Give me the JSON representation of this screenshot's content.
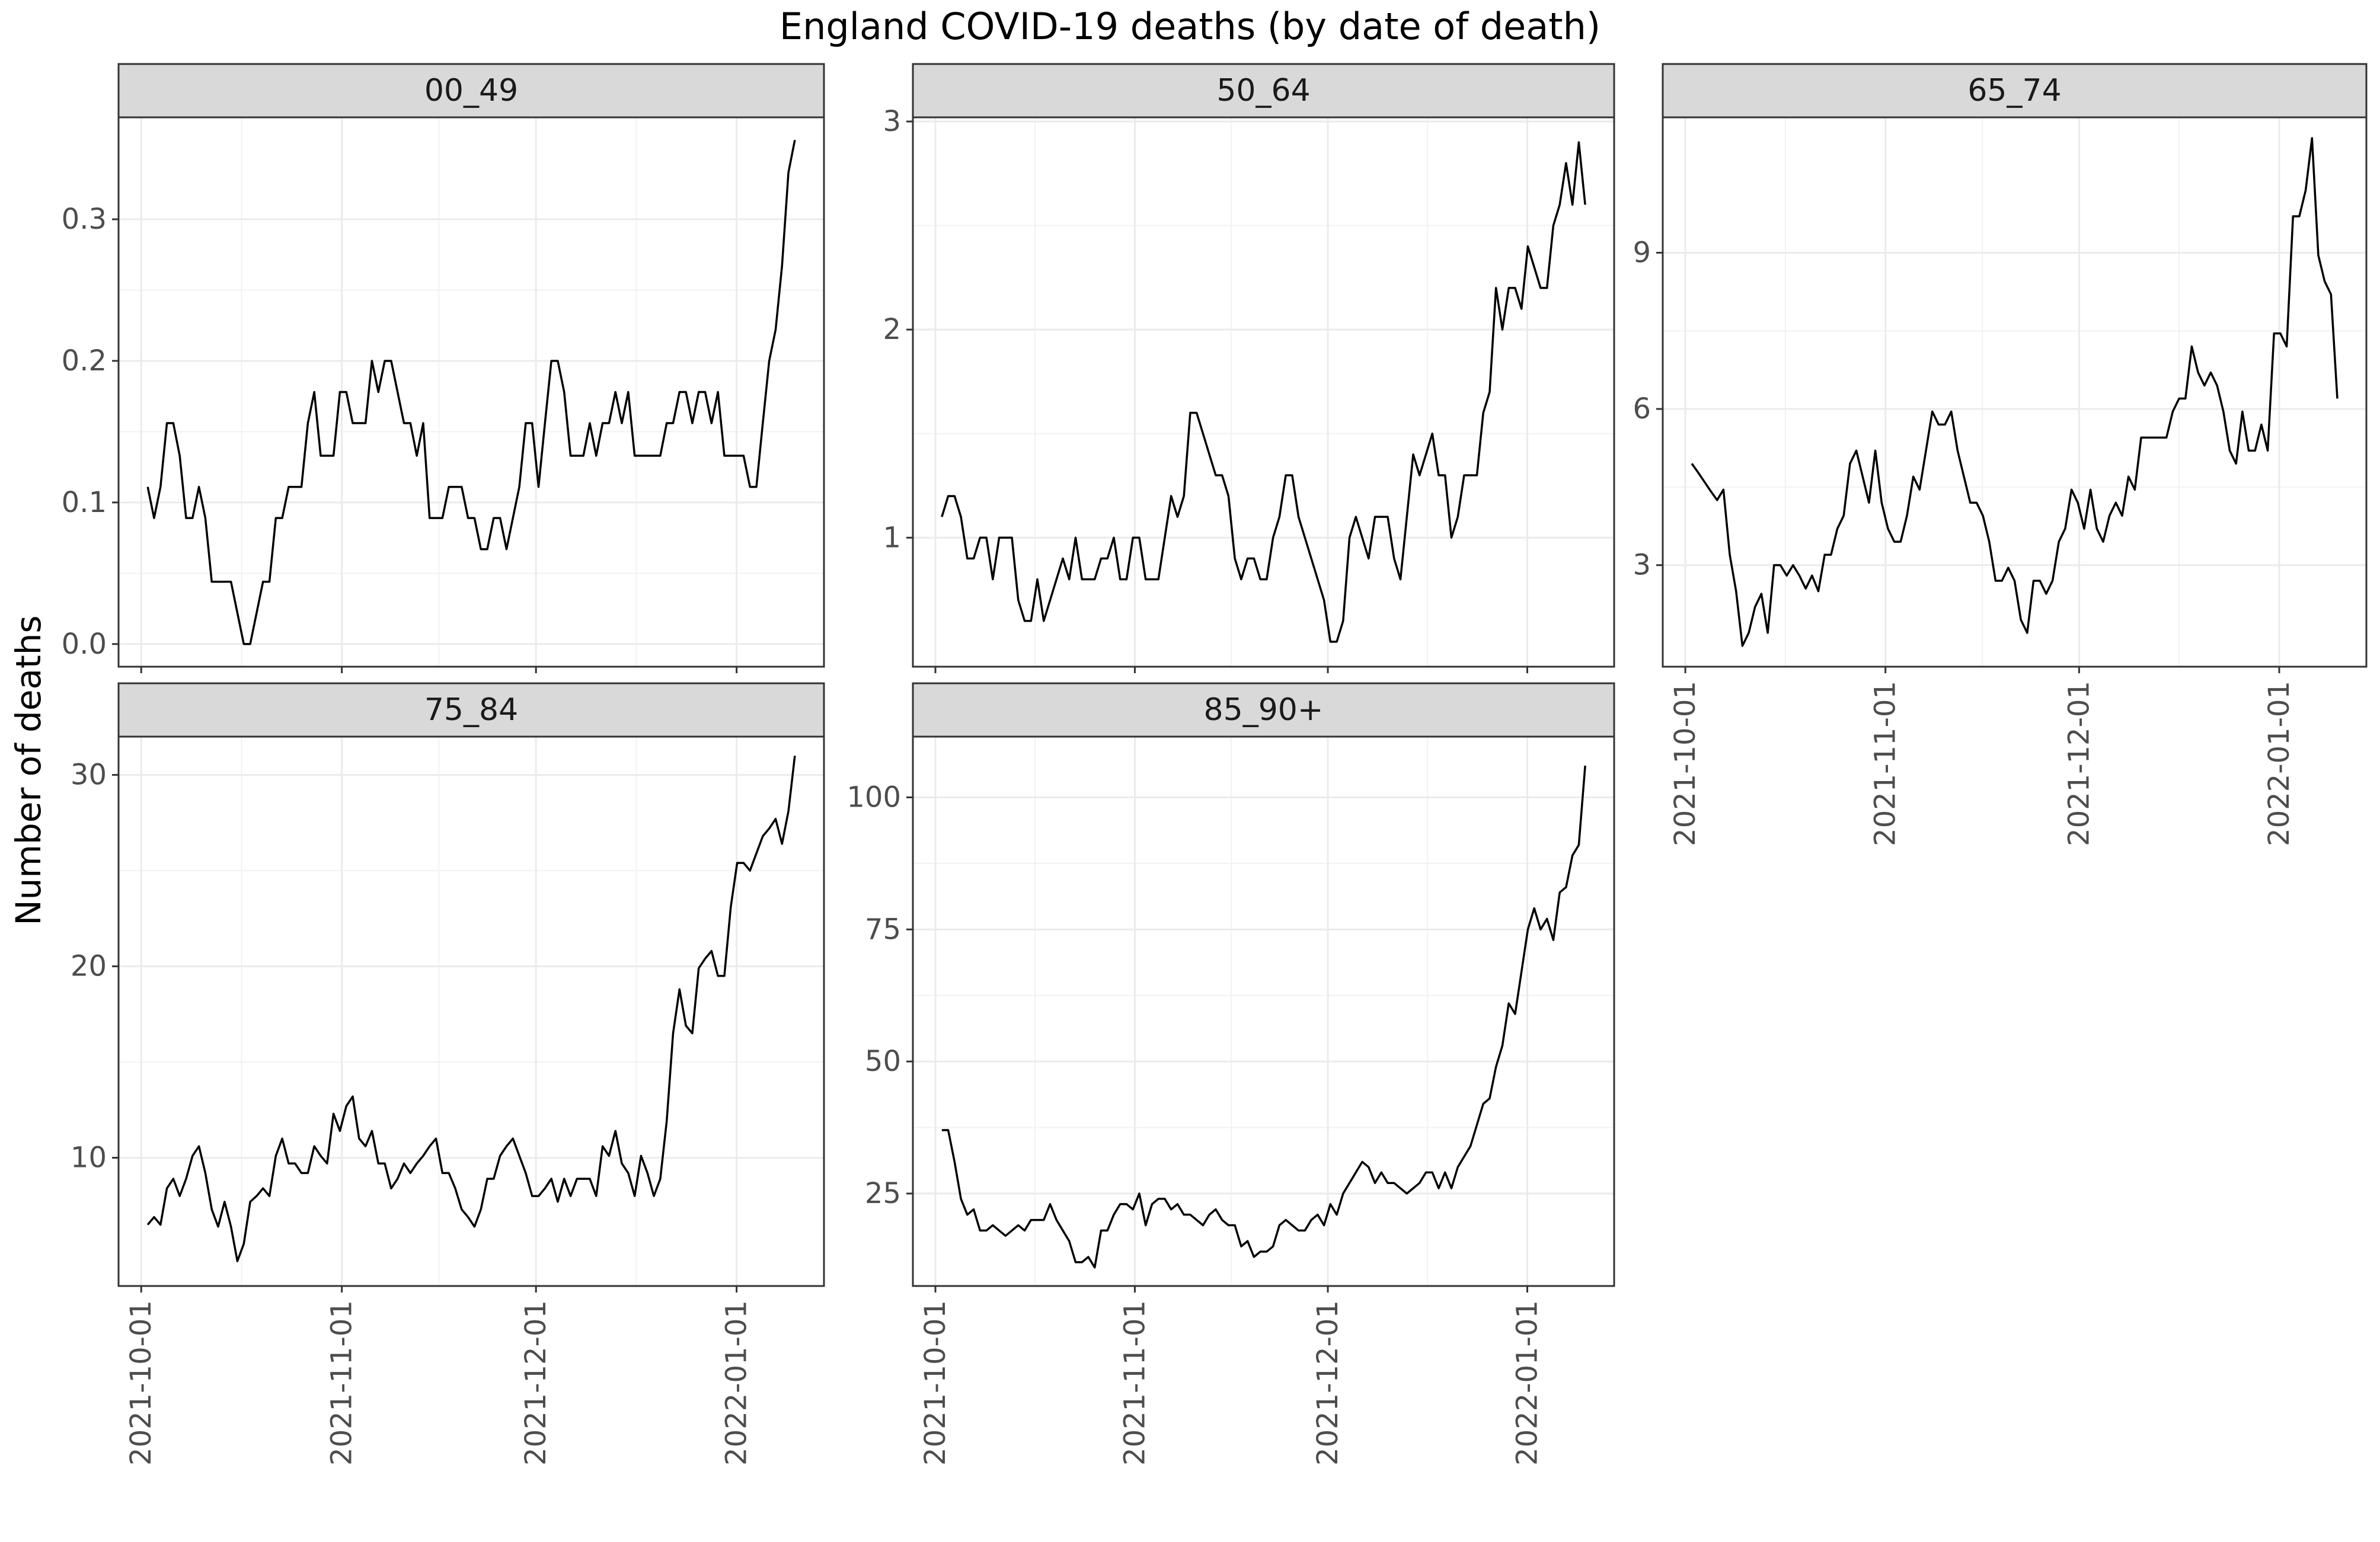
{
  "title": "England COVID-19 deaths (by date of death)",
  "ylabel": "Number of deaths",
  "xlabel": "",
  "chart_data": [
    {
      "type": "line",
      "panel": "00_49",
      "x_start": "2021-10-02",
      "x_end": "2022-01-10",
      "x_ticks": [
        "2021-10-01",
        "2021-11-01",
        "2021-12-01",
        "2022-01-01"
      ],
      "y_ticks": [
        0.0,
        0.1,
        0.2,
        0.3
      ],
      "y_tick_labels": [
        "0.0",
        "0.1",
        "0.2",
        "0.3"
      ],
      "ylim": [
        -0.016,
        0.372
      ],
      "grid": true,
      "values": [
        0.111,
        0.089,
        0.111,
        0.156,
        0.156,
        0.133,
        0.089,
        0.089,
        0.111,
        0.089,
        0.044,
        0.044,
        0.044,
        0.044,
        0.022,
        0,
        0,
        0.022,
        0.044,
        0.044,
        0.089,
        0.089,
        0.111,
        0.111,
        0.111,
        0.156,
        0.178,
        0.133,
        0.133,
        0.133,
        0.178,
        0.178,
        0.156,
        0.156,
        0.156,
        0.2,
        0.178,
        0.2,
        0.2,
        0.178,
        0.156,
        0.156,
        0.133,
        0.156,
        0.089,
        0.089,
        0.089,
        0.111,
        0.111,
        0.111,
        0.089,
        0.089,
        0.067,
        0.067,
        0.089,
        0.089,
        0.067,
        0.089,
        0.111,
        0.156,
        0.156,
        0.111,
        0.156,
        0.2,
        0.2,
        0.178,
        0.133,
        0.133,
        0.133,
        0.156,
        0.133,
        0.156,
        0.156,
        0.178,
        0.156,
        0.178,
        0.133,
        0.133,
        0.133,
        0.133,
        0.133,
        0.156,
        0.156,
        0.178,
        0.178,
        0.156,
        0.178,
        0.178,
        0.156,
        0.178,
        0.133,
        0.133,
        0.133,
        0.133,
        0.111,
        0.111,
        0.156,
        0.2,
        0.222,
        0.267,
        0.333,
        0.356
      ]
    },
    {
      "type": "line",
      "panel": "50_64",
      "x_start": "2021-10-02",
      "x_end": "2022-01-10",
      "x_ticks": [
        "2021-10-01",
        "2021-11-01",
        "2021-12-01",
        "2022-01-01"
      ],
      "y_ticks": [
        1,
        2,
        3
      ],
      "y_tick_labels": [
        "1",
        "2",
        "3"
      ],
      "ylim": [
        0.38,
        3.02
      ],
      "grid": true,
      "values": [
        1.1,
        1.2,
        1.2,
        1.1,
        0.9,
        0.9,
        1.0,
        1.0,
        0.8,
        1.0,
        1.0,
        1.0,
        0.7,
        0.6,
        0.6,
        0.8,
        0.6,
        0.7,
        0.8,
        0.9,
        0.8,
        1.0,
        0.8,
        0.8,
        0.8,
        0.9,
        0.9,
        1.0,
        0.8,
        0.8,
        1.0,
        1.0,
        0.8,
        0.8,
        0.8,
        1.0,
        1.2,
        1.1,
        1.2,
        1.6,
        1.6,
        1.5,
        1.4,
        1.3,
        1.3,
        1.2,
        0.9,
        0.8,
        0.9,
        0.9,
        0.8,
        0.8,
        1.0,
        1.1,
        1.3,
        1.3,
        1.1,
        1.0,
        0.9,
        0.8,
        0.7,
        0.5,
        0.5,
        0.6,
        1.0,
        1.1,
        1.0,
        0.9,
        1.1,
        1.1,
        1.1,
        0.9,
        0.8,
        1.1,
        1.4,
        1.3,
        1.4,
        1.5,
        1.3,
        1.3,
        1.0,
        1.1,
        1.3,
        1.3,
        1.3,
        1.6,
        1.7,
        2.2,
        2.0,
        2.2,
        2.2,
        2.1,
        2.4,
        2.3,
        2.2,
        2.2,
        2.5,
        2.6,
        2.8,
        2.6,
        2.9,
        2.6
      ]
    },
    {
      "type": "line",
      "panel": "65_74",
      "x_start": "2021-10-02",
      "x_end": "2022-01-10",
      "x_ticks": [
        "2021-10-01",
        "2021-11-01",
        "2021-12-01",
        "2022-01-01"
      ],
      "x_tick_labels": [
        "2021-10-01",
        "2021-11-01",
        "2021-12-01",
        "2022-01-01"
      ],
      "y_ticks": [
        3,
        6,
        9
      ],
      "y_tick_labels": [
        "3",
        "6",
        "9"
      ],
      "ylim": [
        1.05,
        11.6
      ],
      "grid": true,
      "values": [
        4.95,
        4.78,
        4.6,
        4.42,
        4.25,
        4.45,
        3.2,
        2.5,
        1.45,
        1.7,
        2.2,
        2.45,
        1.7,
        3.0,
        3.0,
        2.8,
        3.0,
        2.8,
        2.55,
        2.8,
        2.5,
        3.2,
        3.2,
        3.7,
        3.95,
        4.95,
        5.2,
        4.7,
        4.2,
        5.2,
        4.2,
        3.7,
        3.45,
        3.45,
        3.95,
        4.7,
        4.45,
        5.2,
        5.95,
        5.7,
        5.7,
        5.95,
        5.2,
        4.7,
        4.2,
        4.2,
        3.95,
        3.45,
        2.7,
        2.7,
        2.95,
        2.7,
        1.95,
        1.7,
        2.7,
        2.7,
        2.45,
        2.7,
        3.45,
        3.7,
        4.45,
        4.2,
        3.7,
        4.45,
        3.7,
        3.45,
        3.95,
        4.2,
        3.95,
        4.7,
        4.45,
        5.45,
        5.45,
        5.45,
        5.45,
        5.45,
        5.95,
        6.2,
        6.2,
        7.2,
        6.7,
        6.45,
        6.7,
        6.45,
        5.95,
        5.2,
        4.95,
        5.95,
        5.2,
        5.2,
        5.7,
        5.2,
        7.45,
        7.45,
        7.2,
        9.7,
        9.7,
        10.2,
        11.2,
        8.95,
        8.45,
        8.2,
        6.2
      ]
    },
    {
      "type": "line",
      "panel": "75_84",
      "x_start": "2021-10-02",
      "x_end": "2022-01-10",
      "x_ticks": [
        "2021-10-01",
        "2021-11-01",
        "2021-12-01",
        "2022-01-01"
      ],
      "x_tick_labels": [
        "2021-10-01",
        "2021-11-01",
        "2021-12-01",
        "2022-01-01"
      ],
      "y_ticks": [
        10,
        20,
        30
      ],
      "y_tick_labels": [
        "10",
        "20",
        "30"
      ],
      "ylim": [
        3.3,
        32.0
      ],
      "grid": true,
      "values": [
        6.5,
        6.9,
        6.5,
        8.4,
        8.9,
        8.0,
        8.9,
        10.1,
        10.6,
        9.2,
        7.3,
        6.4,
        7.7,
        6.4,
        4.6,
        5.5,
        7.7,
        8.0,
        8.4,
        8.0,
        10.1,
        11.0,
        9.7,
        9.7,
        9.2,
        9.2,
        10.6,
        10.1,
        9.7,
        12.3,
        11.4,
        12.7,
        13.2,
        11.0,
        10.6,
        11.4,
        9.7,
        9.7,
        8.4,
        8.9,
        9.7,
        9.2,
        9.7,
        10.1,
        10.6,
        11.0,
        9.2,
        9.2,
        8.4,
        7.3,
        6.9,
        6.4,
        7.3,
        8.9,
        8.9,
        10.1,
        10.6,
        11.0,
        10.1,
        9.2,
        8.0,
        8.0,
        8.4,
        8.9,
        7.7,
        8.9,
        8.0,
        8.9,
        8.9,
        8.9,
        8.0,
        10.6,
        10.1,
        11.4,
        9.7,
        9.2,
        8.0,
        10.1,
        9.2,
        8.0,
        8.9,
        11.9,
        16.5,
        18.8,
        16.9,
        16.5,
        19.9,
        20.4,
        20.8,
        19.5,
        19.5,
        23.1,
        25.4,
        25.4,
        25.0,
        25.9,
        26.8,
        27.2,
        27.7,
        26.4,
        28.1,
        31.0
      ]
    },
    {
      "type": "line",
      "panel": "85_90+",
      "x_start": "2021-10-02",
      "x_end": "2022-01-10",
      "x_ticks": [
        "2021-10-01",
        "2021-11-01",
        "2021-12-01",
        "2022-01-01"
      ],
      "x_tick_labels": [
        "2021-10-01",
        "2021-11-01",
        "2021-12-01",
        "2022-01-01"
      ],
      "y_ticks": [
        25,
        50,
        75,
        100
      ],
      "y_tick_labels": [
        "25",
        "50",
        "75",
        "100"
      ],
      "ylim": [
        7.5,
        111.5
      ],
      "grid": true,
      "values": [
        37,
        37,
        31,
        24,
        21,
        22,
        18,
        18,
        19,
        18,
        17,
        18,
        19,
        18,
        20,
        20,
        20,
        23,
        20,
        18,
        16,
        12,
        12,
        13,
        11,
        18,
        18,
        21,
        23,
        23,
        22,
        25,
        19,
        23,
        24,
        24,
        22,
        23,
        21,
        21,
        20,
        19,
        21,
        22,
        20,
        19,
        19,
        15,
        16,
        13,
        14,
        14,
        15,
        19,
        20,
        19,
        18,
        18,
        20,
        21,
        19,
        23,
        21,
        25,
        27,
        29,
        31,
        30,
        27,
        29,
        27,
        27,
        26,
        25,
        26,
        27,
        29,
        29,
        26,
        29,
        26,
        30,
        32,
        34,
        38,
        42,
        43,
        49,
        53,
        61,
        59,
        67,
        75,
        79,
        75,
        77,
        73,
        82,
        83,
        89,
        91,
        106
      ]
    }
  ]
}
